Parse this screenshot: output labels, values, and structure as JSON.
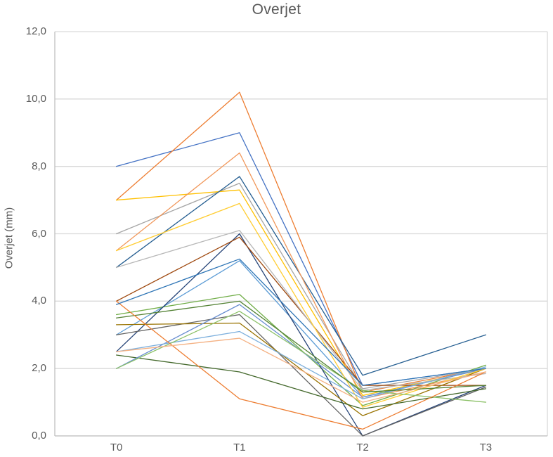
{
  "title": "Overjet",
  "axis_colors": {
    "gridline": "#D9D9D9",
    "axis_line": "#BFBFBF",
    "text": "#595959"
  },
  "chart_data": {
    "type": "line",
    "title": "Overjet",
    "xlabel": "",
    "ylabel": "Overjet (mm)",
    "categories": [
      "T0",
      "T1",
      "T2",
      "T3"
    ],
    "y_tick_labels": [
      "0,0",
      "2,0",
      "4,0",
      "6,0",
      "8,0",
      "10,0",
      "12,0"
    ],
    "y_tick_values": [
      0,
      2,
      4,
      6,
      8,
      10,
      12
    ],
    "ylim": [
      0,
      12
    ],
    "grid": true,
    "legend_position": "none",
    "series": [
      {
        "color": "#4472C4",
        "values": [
          8.0,
          9.0,
          1.5,
          2.0
        ]
      },
      {
        "color": "#ED7D31",
        "values": [
          7.0,
          10.2,
          1.3,
          2.0
        ]
      },
      {
        "color": "#A5A5A5",
        "values": [
          6.0,
          7.5,
          1.4,
          2.0
        ]
      },
      {
        "color": "#FFC000",
        "values": [
          7.0,
          7.3,
          1.2,
          2.0
        ]
      },
      {
        "color": "#5B9BD5",
        "values": [
          3.0,
          5.2,
          1.15,
          2.0
        ]
      },
      {
        "color": "#70AD47",
        "values": [
          3.6,
          4.2,
          0.9,
          2.1
        ]
      },
      {
        "color": "#264478",
        "values": [
          2.5,
          6.0,
          0.0,
          1.5
        ]
      },
      {
        "color": "#9E480E",
        "values": [
          4.0,
          5.9,
          1.5,
          1.5
        ]
      },
      {
        "color": "#636363",
        "values": [
          3.0,
          3.6,
          0.0,
          1.45
        ]
      },
      {
        "color": "#997300",
        "values": [
          3.3,
          3.35,
          0.6,
          2.0
        ]
      },
      {
        "color": "#255E91",
        "values": [
          5.0,
          7.7,
          1.8,
          3.0
        ]
      },
      {
        "color": "#43682B",
        "values": [
          2.4,
          1.9,
          0.8,
          1.4
        ]
      },
      {
        "color": "#698ED0",
        "values": [
          2.0,
          3.9,
          1.15,
          2.0
        ]
      },
      {
        "color": "#F1975A",
        "values": [
          5.5,
          8.4,
          1.1,
          1.9
        ]
      },
      {
        "color": "#B7B7B7",
        "values": [
          5.0,
          6.1,
          1.35,
          1.85
        ]
      },
      {
        "color": "#FFCD33",
        "values": [
          5.5,
          6.9,
          0.85,
          2.0
        ]
      },
      {
        "color": "#7CAFDD",
        "values": [
          2.5,
          3.1,
          1.1,
          2.05
        ]
      },
      {
        "color": "#8CC168",
        "values": [
          2.0,
          3.7,
          1.35,
          1.0
        ]
      },
      {
        "color": "#548235",
        "values": [
          3.5,
          4.0,
          1.3,
          1.5
        ]
      },
      {
        "color": "#ED7D31",
        "values": [
          4.0,
          1.1,
          0.2,
          1.9
        ]
      },
      {
        "color": "#F4B183",
        "values": [
          2.5,
          2.9,
          1.0,
          1.9
        ]
      },
      {
        "color": "#2E75B6",
        "values": [
          3.9,
          5.25,
          1.5,
          2.0
        ]
      }
    ]
  }
}
